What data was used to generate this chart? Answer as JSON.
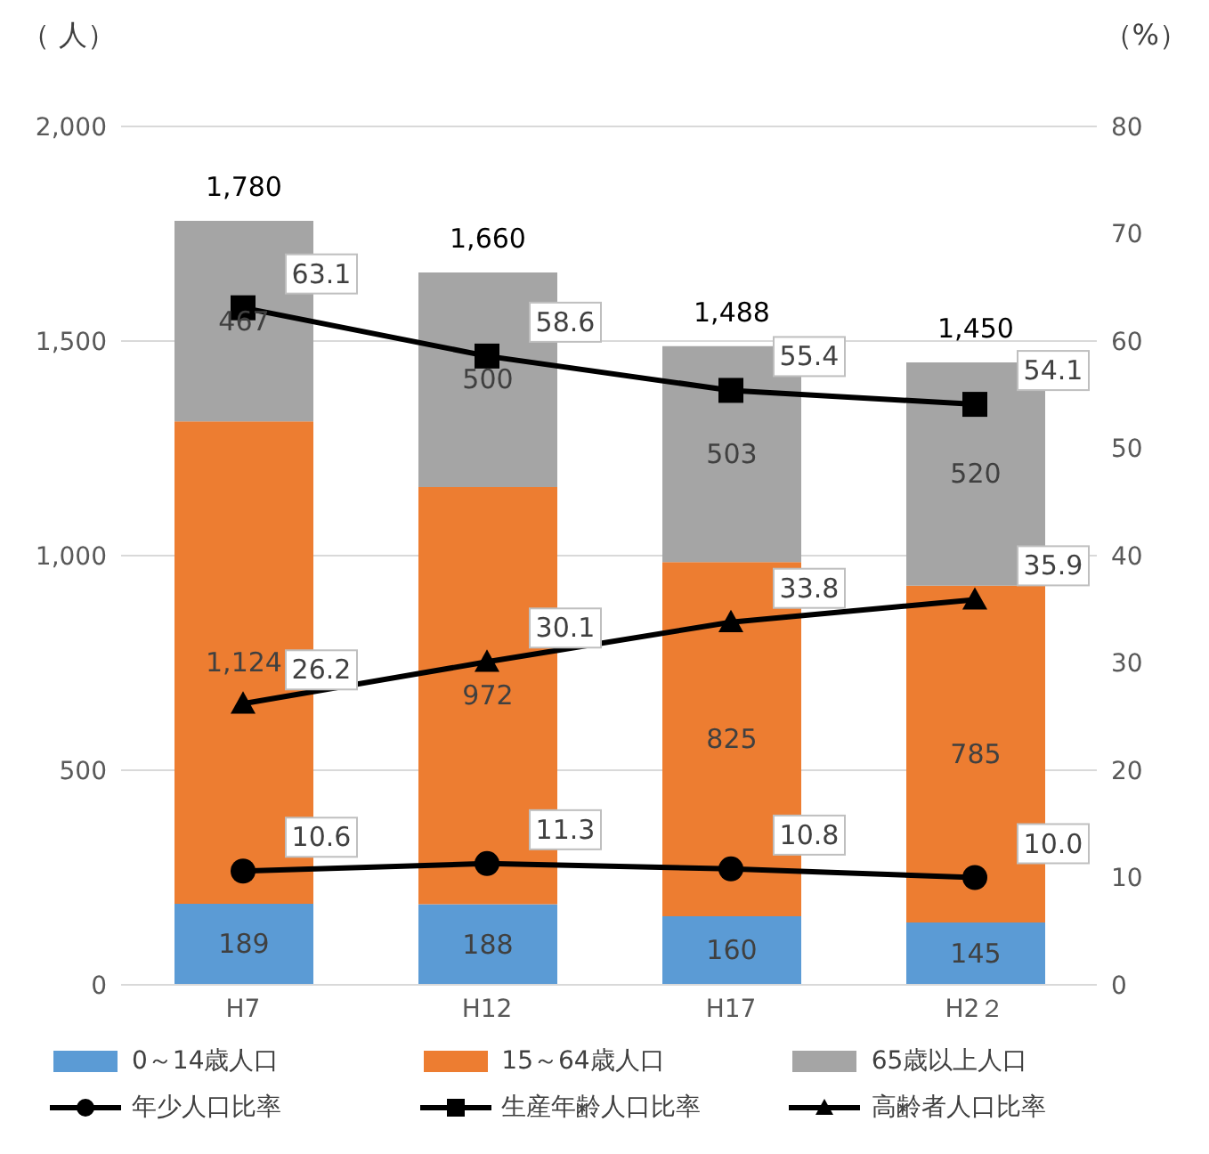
{
  "chart_data": {
    "type": "bar",
    "ylabel": "（ 人）",
    "y2label": "（%）",
    "categories": [
      "H7",
      "H12",
      "H17",
      "H2２"
    ],
    "stacked": true,
    "series": [
      {
        "name": "0～14歳人口",
        "color": "#5b9bd5",
        "values": [
          189,
          188,
          160,
          145
        ],
        "value_labels": [
          "189",
          "188",
          "160",
          "145"
        ]
      },
      {
        "name": "15～64歳人口",
        "color": "#ed7d31",
        "values": [
          1124,
          972,
          825,
          785
        ],
        "value_labels": [
          "1,124",
          "972",
          "825",
          "785"
        ]
      },
      {
        "name": "65歳以上人口",
        "color": "#a5a5a5",
        "values": [
          467,
          500,
          503,
          520
        ],
        "value_labels": [
          "467",
          "500",
          "503",
          "520"
        ]
      },
      {
        "name": "年少人口比率",
        "type": "line",
        "axis": "y2",
        "marker": "circle",
        "color": "#000000",
        "values": [
          10.6,
          11.3,
          10.8,
          10.0
        ],
        "value_labels": [
          "10.6",
          "11.3",
          "10.8",
          "10.0"
        ]
      },
      {
        "name": "生産年齢人口比率",
        "type": "line",
        "axis": "y2",
        "marker": "square",
        "color": "#000000",
        "values": [
          63.1,
          58.6,
          55.4,
          54.1
        ],
        "value_labels": [
          "63.1",
          "58.6",
          "55.4",
          "54.1"
        ]
      },
      {
        "name": "高齢者人口比率",
        "type": "line",
        "axis": "y2",
        "marker": "triangle",
        "color": "#000000",
        "values": [
          26.2,
          30.1,
          33.8,
          35.9
        ],
        "value_labels": [
          "26.2",
          "30.1",
          "33.8",
          "35.9"
        ]
      }
    ],
    "totals": [
      "1,780",
      "1,660",
      "1,488",
      "1,450"
    ],
    "ylim": [
      0,
      2000
    ],
    "yticks": [
      0,
      {
        "value": 500,
        "label": "500"
      },
      {
        "value": 1000,
        "label": "1,000"
      },
      {
        "value": 1500,
        "label": "1,500"
      },
      {
        "value": 2000,
        "label": "2,000"
      }
    ],
    "y2lim": [
      0,
      80
    ],
    "y2ticks": [
      0,
      10,
      20,
      30,
      40,
      50,
      60,
      70,
      80
    ],
    "grid": "y",
    "legend": "bottom",
    "line_style": "solid"
  }
}
